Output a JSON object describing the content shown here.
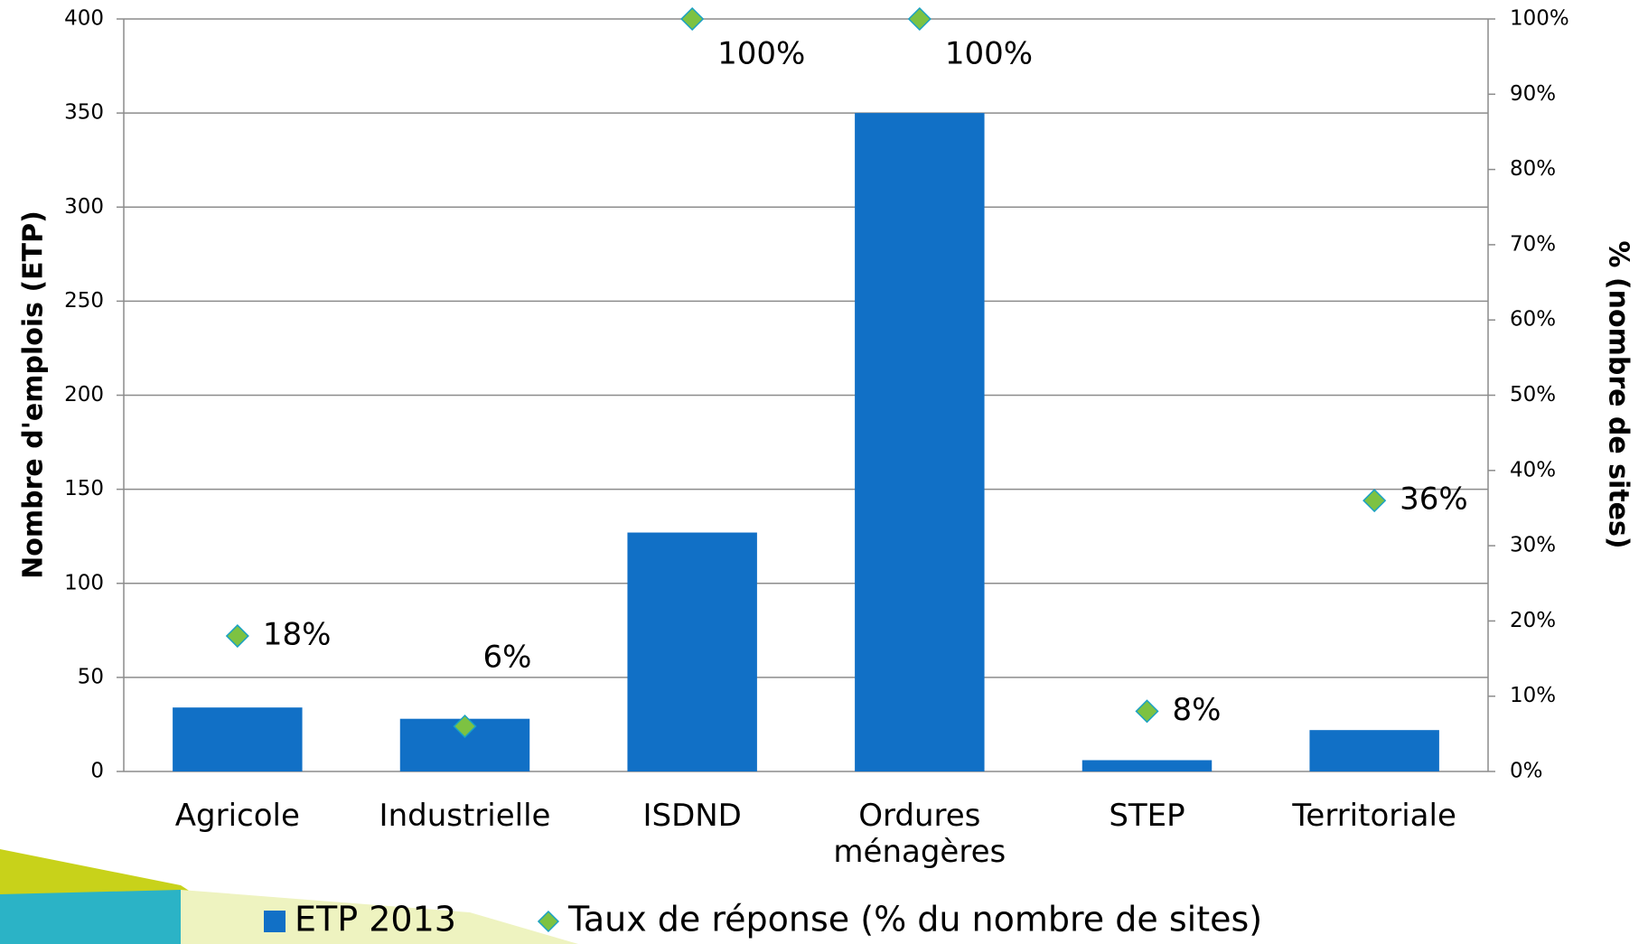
{
  "chart_data": {
    "type": "bar",
    "categories": [
      "Agricole",
      "Industrielle",
      "ISDND",
      "Ordures ménagères",
      "STEP",
      "Territoriale"
    ],
    "ylabel": "Nombre d'emplois (ETP)",
    "y2label": "% (nombre de sites)",
    "ylim": [
      0,
      400
    ],
    "yticks": [
      0,
      50,
      100,
      150,
      200,
      250,
      300,
      350,
      400
    ],
    "y2lim": [
      0,
      100
    ],
    "y2ticks": [
      {
        "value": 0,
        "label": "0%"
      },
      {
        "value": 10,
        "label": "10%"
      },
      {
        "value": 20,
        "label": "20%"
      },
      {
        "value": 30,
        "label": "30%"
      },
      {
        "value": 40,
        "label": "40%"
      },
      {
        "value": 50,
        "label": "50%"
      },
      {
        "value": 60,
        "label": "60%"
      },
      {
        "value": 70,
        "label": "70%"
      },
      {
        "value": 80,
        "label": "80%"
      },
      {
        "value": 90,
        "label": "90%"
      },
      {
        "value": 100,
        "label": "100%"
      }
    ],
    "grid": true,
    "series": [
      {
        "name": "ETP 2013",
        "type": "bar",
        "color": "#1170c6",
        "values": [
          34,
          28,
          127,
          350,
          6,
          22
        ]
      },
      {
        "name": "Taux de réponse (% du nombre de sites)",
        "type": "scatter",
        "axis": "y2",
        "color": "#7dc242",
        "values": [
          18,
          6,
          100,
          100,
          8,
          36
        ],
        "value_labels": [
          "18%",
          "6%",
          "100%",
          "100%",
          "8%",
          "36%"
        ]
      }
    ]
  }
}
